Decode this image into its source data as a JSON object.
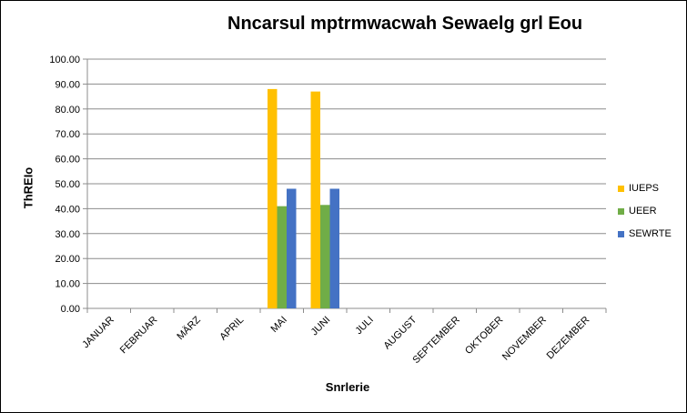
{
  "chart_data": {
    "type": "bar",
    "title": "Nncarsul mptrmwacwah Sewaelg grl Eou",
    "xlabel": "Snrlerie",
    "ylabel": "ThREIo",
    "ylim": [
      0,
      100
    ],
    "ytick_labels": [
      "0.00",
      "10.00",
      "20.00",
      "30.00",
      "40.00",
      "50.00",
      "60.00",
      "70.00",
      "80.00",
      "90.00",
      "100.00"
    ],
    "grid": true,
    "legend_position": "right",
    "categories": [
      "JANUAR",
      "FEBRUAR",
      "MÄRZ",
      "APRIL",
      "MAI",
      "JUNI",
      "JULI",
      "AUGUST",
      "SEPTEMBER",
      "OKTOBER",
      "NOVEMBER",
      "DEZEMBER"
    ],
    "series": [
      {
        "name": "IUEPS",
        "color": "#ffc000",
        "values": [
          0,
          0,
          0,
          0,
          88,
          87,
          0,
          0,
          0,
          0,
          0,
          0
        ]
      },
      {
        "name": "UEER",
        "color": "#70ad47",
        "values": [
          0,
          0,
          0,
          0,
          41,
          41.5,
          0,
          0,
          0,
          0,
          0,
          0
        ]
      },
      {
        "name": "SEWRTE",
        "color": "#4472c4",
        "values": [
          0,
          0,
          0,
          0,
          48,
          48,
          0,
          0,
          0,
          0,
          0,
          0
        ]
      }
    ]
  }
}
